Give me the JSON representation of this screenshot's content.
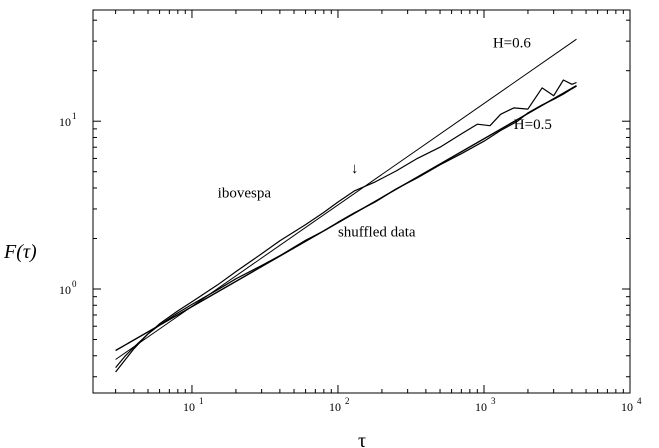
{
  "chart_data": {
    "type": "line",
    "title": "",
    "xlabel": "τ",
    "ylabel": "F(τ)",
    "xscale": "log",
    "yscale": "log",
    "xlim": [
      2.1,
      10000
    ],
    "ylim": [
      0.24,
      46
    ],
    "grid": false,
    "x_ticks": [
      {
        "value": 10,
        "base": "10",
        "exp": "1"
      },
      {
        "value": 100,
        "base": "10",
        "exp": "2"
      },
      {
        "value": 1000,
        "base": "10",
        "exp": "3"
      },
      {
        "value": 10000,
        "base": "10",
        "exp": "4"
      }
    ],
    "y_ticks": [
      {
        "value": 1,
        "base": "10",
        "exp": "0"
      },
      {
        "value": 10,
        "base": "10",
        "exp": "1"
      }
    ],
    "series": [
      {
        "name": "ibovespa",
        "x": [
          3,
          3.5,
          4,
          5,
          6,
          8,
          10,
          15,
          20,
          30,
          40,
          60,
          80,
          100,
          130,
          180,
          250,
          350,
          500,
          700,
          900,
          1100,
          1300,
          1600,
          2000,
          2500,
          3000,
          3500,
          4000,
          4300
        ],
        "y": [
          0.32,
          0.38,
          0.44,
          0.54,
          0.62,
          0.74,
          0.84,
          1.06,
          1.27,
          1.62,
          1.94,
          2.42,
          2.86,
          3.3,
          3.85,
          4.35,
          5.05,
          6.0,
          7.0,
          8.4,
          9.6,
          9.4,
          11.0,
          12.0,
          11.8,
          15.8,
          14.2,
          17.6,
          16.6,
          17.0
        ]
      },
      {
        "name": "shuffled data",
        "x": [
          3,
          3.5,
          4,
          5,
          6,
          8,
          10,
          15,
          20,
          30,
          40,
          60,
          80,
          100,
          130,
          180,
          250,
          350,
          500,
          700,
          1000,
          1300,
          1700,
          2000,
          2500,
          3000,
          3500,
          4000,
          4300
        ],
        "y": [
          0.34,
          0.4,
          0.45,
          0.54,
          0.61,
          0.72,
          0.81,
          0.99,
          1.15,
          1.38,
          1.58,
          1.95,
          2.22,
          2.5,
          2.85,
          3.3,
          3.95,
          4.6,
          5.5,
          6.4,
          7.6,
          8.8,
          10.0,
          11.2,
          12.5,
          13.5,
          14.5,
          15.6,
          16.2
        ]
      },
      {
        "name": "H=0.6",
        "x": [
          3,
          4300
        ],
        "y": [
          0.38,
          30.8
        ]
      },
      {
        "name": "H=0.5",
        "x": [
          3,
          4300
        ],
        "y": [
          0.43,
          16.3
        ]
      }
    ],
    "annotations": [
      {
        "text": "H=0.6",
        "x": 1150,
        "y": 27.5
      },
      {
        "text": "H=0.5",
        "x": 1600,
        "y": 9.0
      },
      {
        "text": "ibovespa",
        "x": 15,
        "y": 3.5
      },
      {
        "text": "shuffled data",
        "x": 100,
        "y": 2.05
      },
      {
        "text": "↓",
        "x": 130,
        "y": 4.9
      }
    ]
  }
}
